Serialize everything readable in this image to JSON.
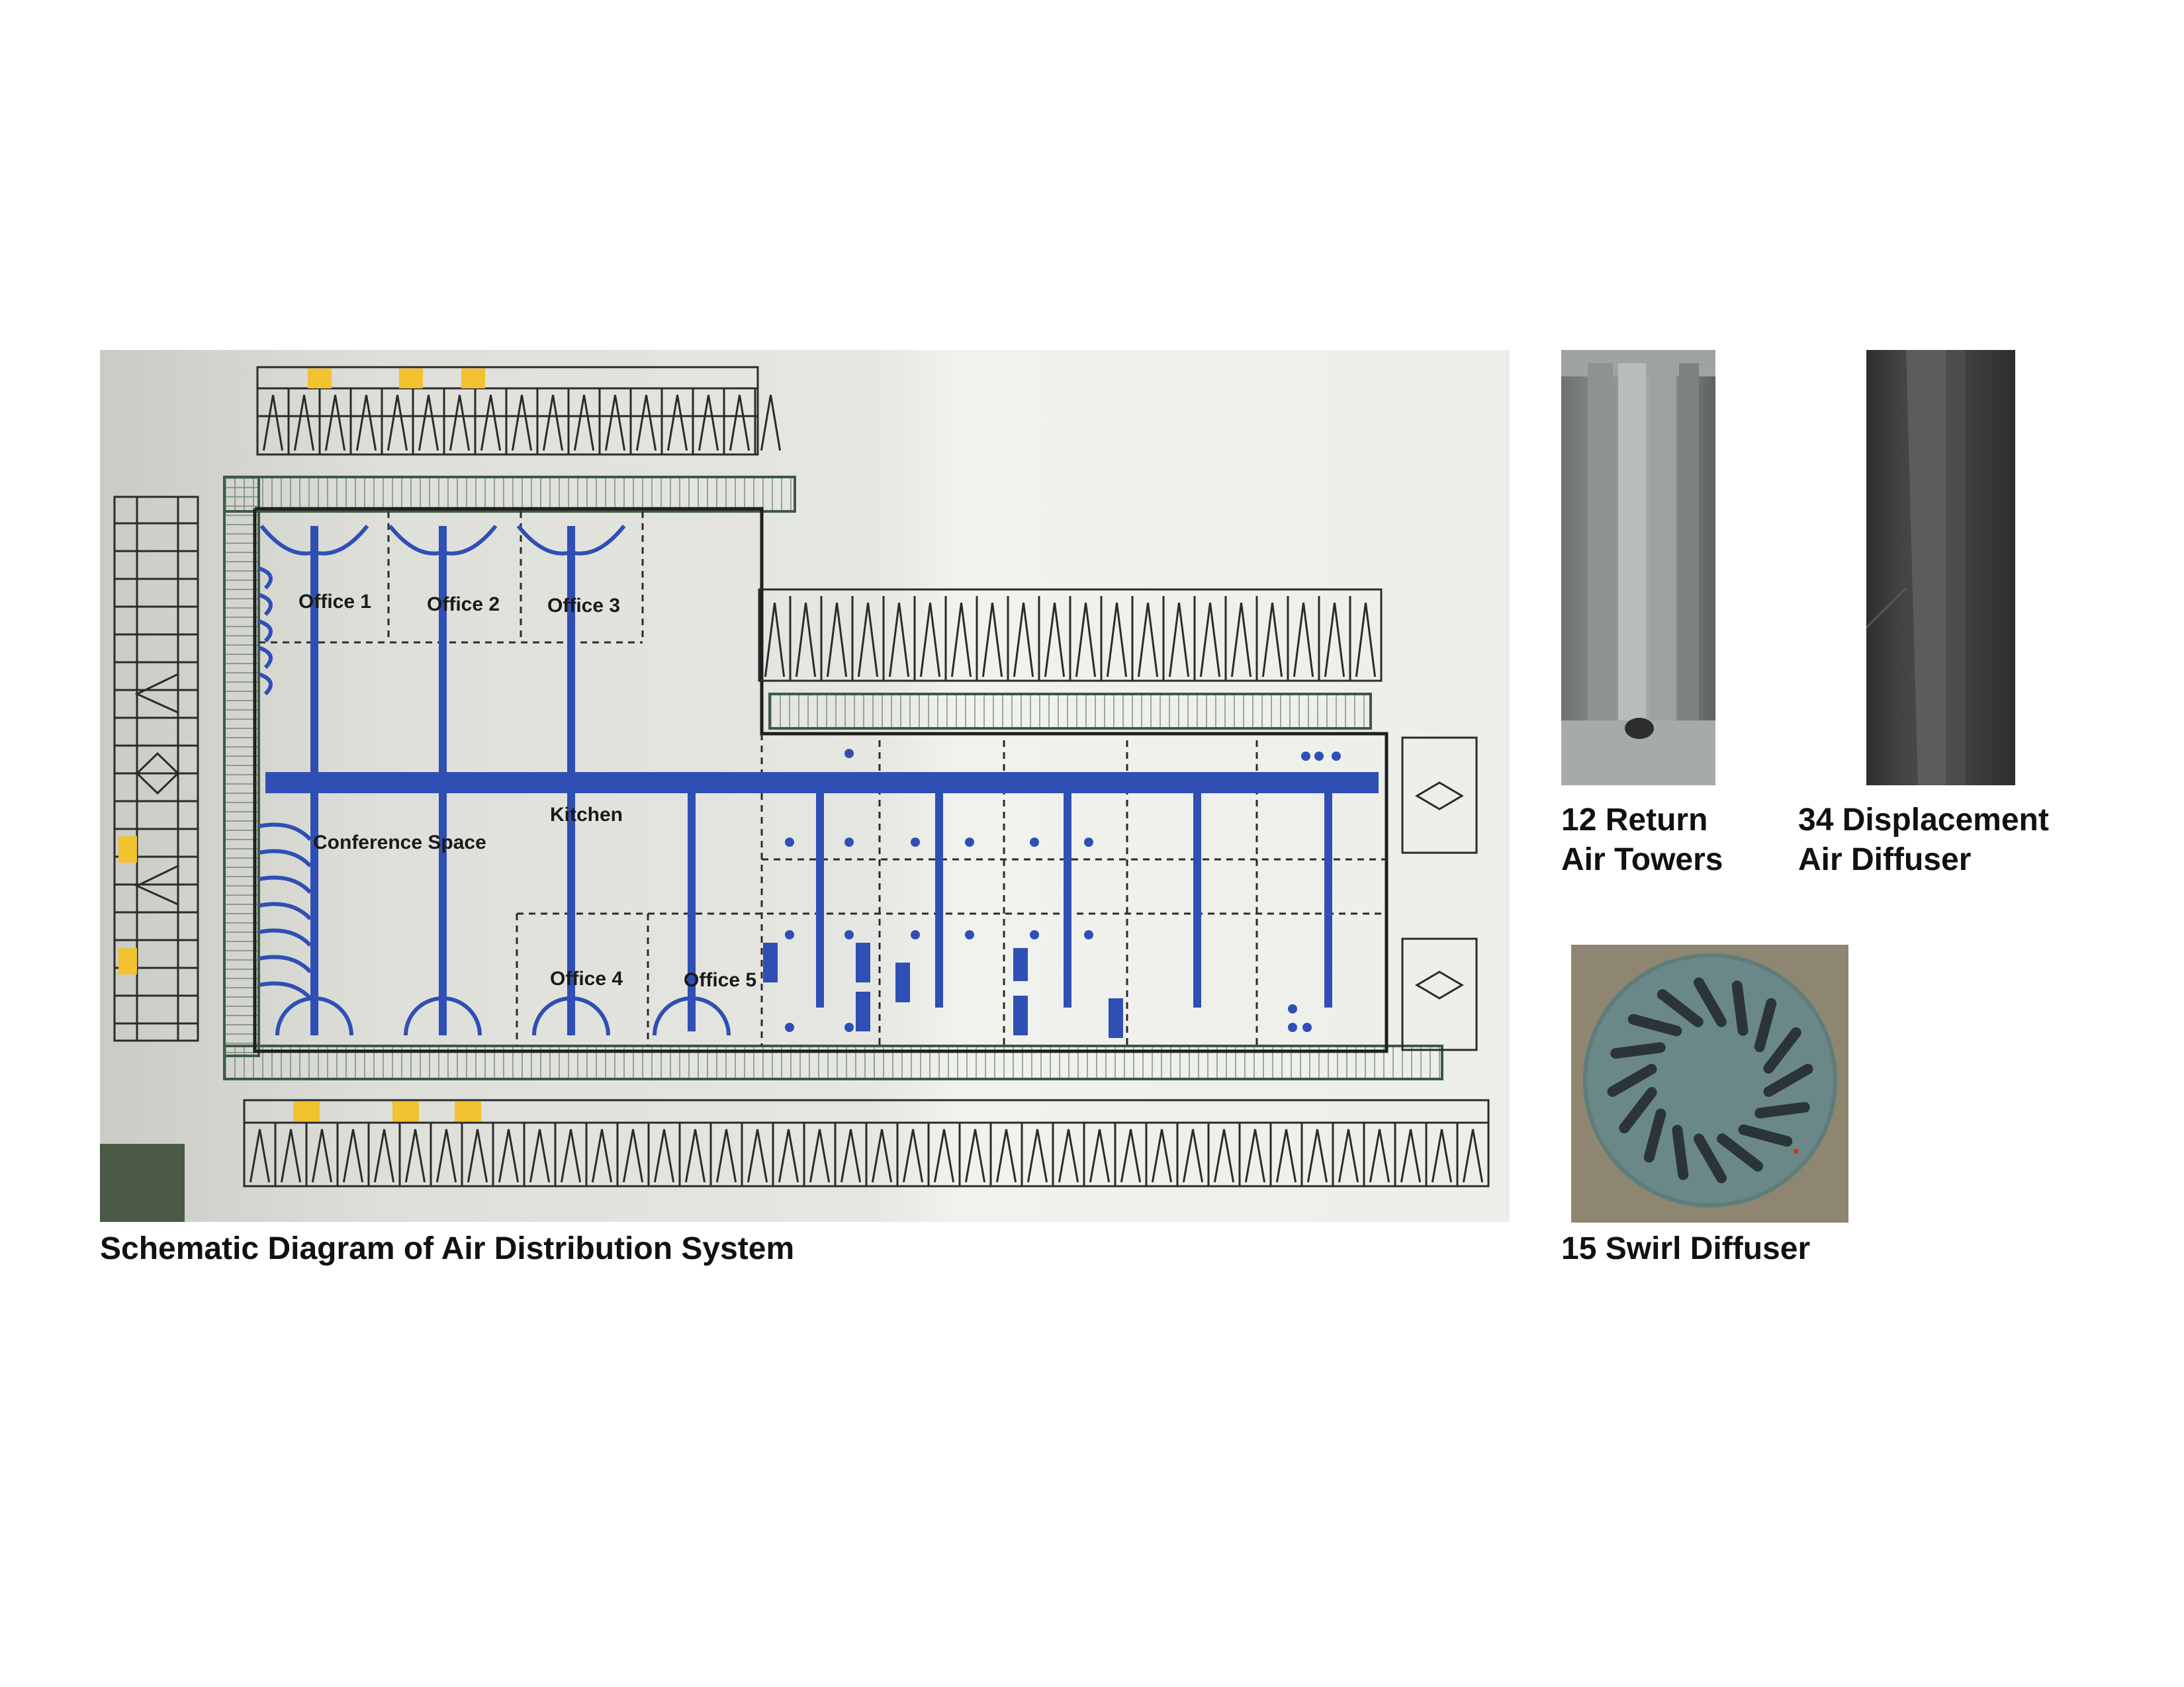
{
  "captions": {
    "schematic": "Schematic Diagram of Air Distribution System",
    "return_towers": "12 Return\nAir Towers",
    "displacement": "34 Displacement\nAir Diffuser",
    "swirl": "15 Swirl Diffuser"
  },
  "plan": {
    "rooms": {
      "office1": "Office 1",
      "office2": "Office 2",
      "office3": "Office 3",
      "office4": "Office 4",
      "office5": "Office 5",
      "kitchen": "Kitchen",
      "conference": "Conference Space"
    },
    "fixture_marker": "F"
  },
  "colors": {
    "duct_blue": "#2f4fb5",
    "grate_green": "#3d5a44",
    "highlight_yellow": "#f2c230"
  }
}
